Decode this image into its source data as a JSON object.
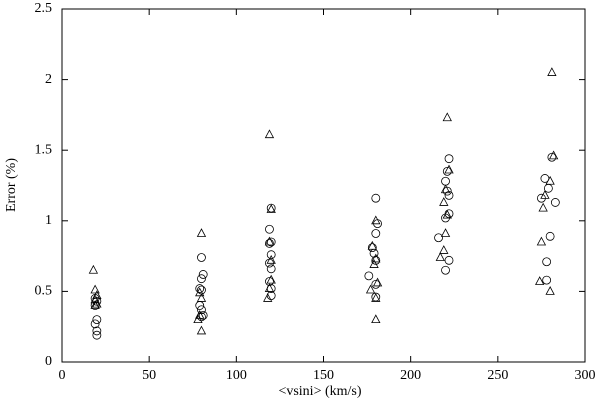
{
  "chart_data": {
    "type": "scatter",
    "xlabel": "<vsini> (km/s)",
    "ylabel": "Error (%)",
    "xlim": [
      0,
      300
    ],
    "ylim": [
      0,
      2.5
    ],
    "xticks": [
      0,
      50,
      100,
      150,
      200,
      250,
      300
    ],
    "yticks": [
      0,
      0.5,
      1,
      1.5,
      2,
      2.5
    ],
    "series": [
      {
        "marker": "triangle",
        "color": "#000000",
        "x": [
          18,
          19,
          20,
          19,
          20,
          19,
          80,
          79,
          80,
          79,
          78,
          80,
          119,
          120,
          119,
          120,
          120,
          118,
          119,
          180,
          178,
          180,
          179,
          181,
          177,
          180,
          180,
          221,
          222,
          220,
          219,
          221,
          220,
          219,
          217,
          281,
          282,
          280,
          277,
          276,
          275,
          274,
          280
        ],
        "values": [
          0.65,
          0.51,
          0.47,
          0.44,
          0.41,
          0.4,
          0.91,
          0.49,
          0.45,
          0.33,
          0.3,
          0.22,
          1.61,
          1.08,
          0.85,
          0.72,
          0.58,
          0.45,
          0.52,
          1.0,
          0.82,
          0.73,
          0.69,
          0.56,
          0.51,
          0.45,
          0.3,
          1.73,
          1.36,
          1.22,
          1.13,
          1.04,
          0.91,
          0.79,
          0.74,
          2.05,
          1.46,
          1.28,
          1.18,
          1.09,
          0.85,
          0.57,
          0.5
        ]
      },
      {
        "marker": "circle",
        "color": "#000000",
        "x": [
          19,
          20,
          19,
          20,
          19,
          20,
          20,
          80,
          81,
          80,
          79,
          80,
          79,
          80,
          81,
          80,
          120,
          119,
          120,
          119,
          120,
          119,
          120,
          119,
          120,
          120,
          180,
          181,
          180,
          178,
          179,
          180,
          176,
          180,
          180,
          222,
          221,
          220,
          221,
          222,
          222,
          220,
          216,
          222,
          220,
          281,
          277,
          279,
          275,
          283,
          280,
          278,
          278
        ],
        "values": [
          0.45,
          0.43,
          0.4,
          0.3,
          0.27,
          0.22,
          0.19,
          0.74,
          0.62,
          0.59,
          0.52,
          0.51,
          0.4,
          0.37,
          0.33,
          0.32,
          1.09,
          0.94,
          0.85,
          0.84,
          0.76,
          0.7,
          0.66,
          0.57,
          0.52,
          0.47,
          1.16,
          0.98,
          0.91,
          0.81,
          0.77,
          0.72,
          0.61,
          0.55,
          0.46,
          1.44,
          1.35,
          1.28,
          1.21,
          1.18,
          1.05,
          1.02,
          0.88,
          0.72,
          0.65,
          1.45,
          1.3,
          1.23,
          1.16,
          1.13,
          0.89,
          0.71,
          0.58
        ]
      }
    ]
  }
}
